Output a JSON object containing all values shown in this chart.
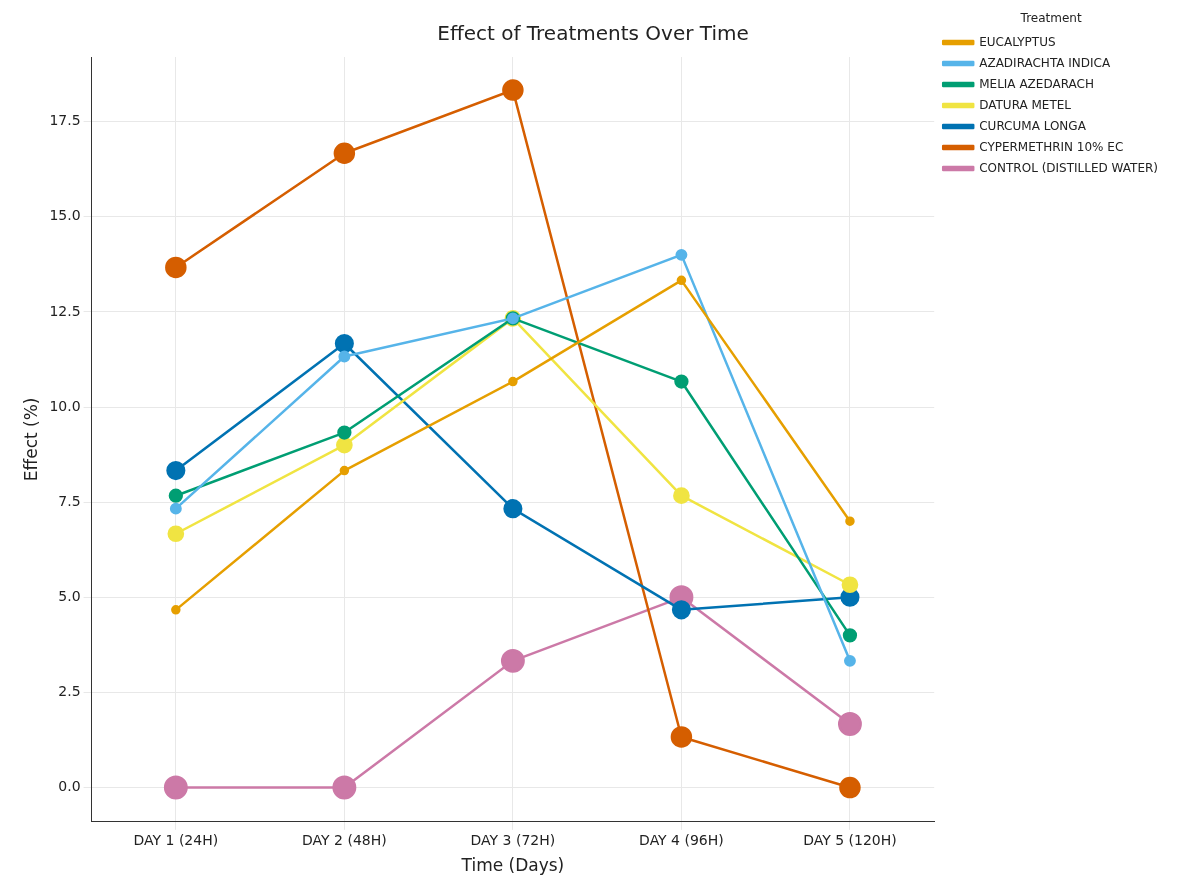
{
  "chart_data": {
    "type": "line",
    "title": "Effect of Treatments Over Time",
    "xlabel": "Time (Days)",
    "ylabel": "Effect (%)",
    "legend_title": "Treatment",
    "categories": [
      "DAY 1 (24H)",
      "DAY 2 (48H)",
      "DAY 3 (72H)",
      "DAY 4 (96H)",
      "DAY 5 (120H)"
    ],
    "series": [
      {
        "name": "EUCALYPTUS",
        "color": "#e69f00",
        "values": [
          4.67,
          8.33,
          10.67,
          13.33,
          7.0
        ]
      },
      {
        "name": "AZADIRACHTA INDICA",
        "color": "#56b4e9",
        "values": [
          7.33,
          11.33,
          12.33,
          14.0,
          3.33
        ]
      },
      {
        "name": "MELIA AZEDARACH",
        "color": "#009e73",
        "values": [
          7.67,
          9.33,
          12.33,
          10.67,
          4.0
        ]
      },
      {
        "name": "DATURA METEL",
        "color": "#f0e442",
        "values": [
          6.67,
          9.0,
          12.33,
          7.67,
          5.33
        ]
      },
      {
        "name": "CURCUMA LONGA",
        "color": "#0072b2",
        "values": [
          8.33,
          11.67,
          7.33,
          4.67,
          5.0
        ]
      },
      {
        "name": "CYPERMETHRIN 10% EC",
        "color": "#d55e00",
        "values": [
          13.67,
          16.67,
          18.33,
          1.33,
          0
        ]
      },
      {
        "name": "CONTROL (DISTILLED WATER)",
        "color": "#cc79a7",
        "values": [
          0,
          0,
          3.33,
          5.0,
          1.67
        ]
      }
    ],
    "ylim": [
      -0.9,
      19.2
    ],
    "yticks": [
      {
        "value": 0,
        "label": "0.0"
      },
      {
        "value": 2.5,
        "label": "2.5"
      },
      {
        "value": 5,
        "label": "5.0"
      },
      {
        "value": 7.5,
        "label": "7.5"
      },
      {
        "value": 10,
        "label": "10.0"
      },
      {
        "value": 12.5,
        "label": "12.5"
      },
      {
        "value": 15,
        "label": "15.0"
      },
      {
        "value": 17.5,
        "label": "17.5"
      }
    ],
    "grid": true,
    "legend": "right",
    "marker": "circle",
    "line_style": "solid"
  }
}
